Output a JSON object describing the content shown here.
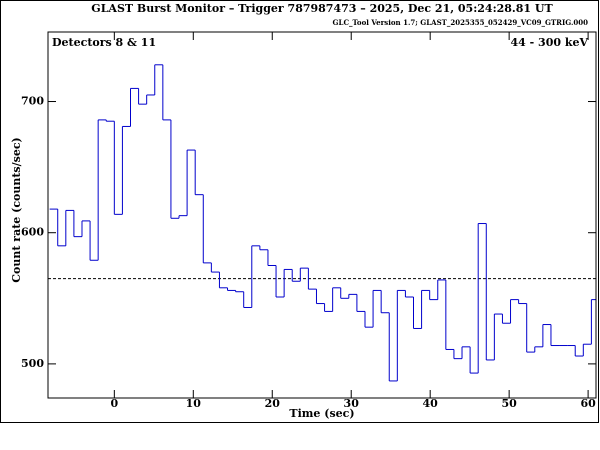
{
  "chart_data": {
    "type": "histogram",
    "title": "GLAST Burst Monitor  –  Trigger 787987473  –  2025, Dec 21, 05:24:28.81 UT",
    "subtitle": "GLC_Tool Version 1.7; GLAST_2025355_052429_VC09_GTRIG.000",
    "annotations": [
      "Detectors 8 & 11",
      "44 - 300 keV"
    ],
    "x_label": "Time (sec)",
    "y_label": "Count rate (counts/sec)",
    "bins": [
      -8.192,
      -7.168,
      -6.144,
      -5.12,
      -4.096,
      -3.072,
      -2.048,
      -1.024,
      0,
      1.024,
      2.048,
      3.072,
      4.096,
      5.12,
      6.144,
      7.168,
      8.192,
      9.216,
      10.24,
      11.264,
      12.288,
      13.312,
      14.336,
      15.36,
      16.384,
      17.408,
      18.432,
      19.456,
      20.48,
      21.504,
      22.528,
      23.552,
      24.576,
      25.6,
      26.624,
      27.648,
      28.672,
      29.696,
      30.72,
      31.744,
      32.768,
      33.792,
      34.816,
      35.84,
      36.864,
      37.888,
      38.912,
      39.936,
      40.96,
      41.984,
      43.008,
      44.032,
      45.056,
      46.08,
      47.104,
      48.128,
      49.152,
      50.176,
      51.2,
      52.224,
      53.248,
      54.272,
      55.296,
      56.32,
      57.344,
      58.368,
      59.392,
      60.416,
      61.44
    ],
    "values": [
      618,
      590,
      617,
      597,
      609,
      579,
      686,
      685,
      614,
      681,
      710,
      698,
      705,
      728,
      686,
      611,
      613,
      663,
      629,
      577,
      570,
      558,
      556,
      555,
      543,
      590,
      587,
      575,
      551,
      572,
      563,
      573,
      557,
      546,
      540,
      558,
      550,
      553,
      540,
      528,
      556,
      539,
      487,
      556,
      551,
      527,
      556,
      549,
      564,
      511,
      504,
      513,
      493,
      607,
      503,
      538,
      531,
      549,
      546,
      509,
      513,
      530,
      514,
      514,
      514,
      506,
      515,
      549
    ],
    "color": "#0000cc",
    "background_level": 565,
    "xlim": [
      -8.4,
      61
    ],
    "xticks": [
      0,
      10,
      20,
      30,
      40,
      50,
      60
    ],
    "ylim": [
      474,
      753
    ],
    "yticks": [
      500,
      600,
      700
    ]
  }
}
